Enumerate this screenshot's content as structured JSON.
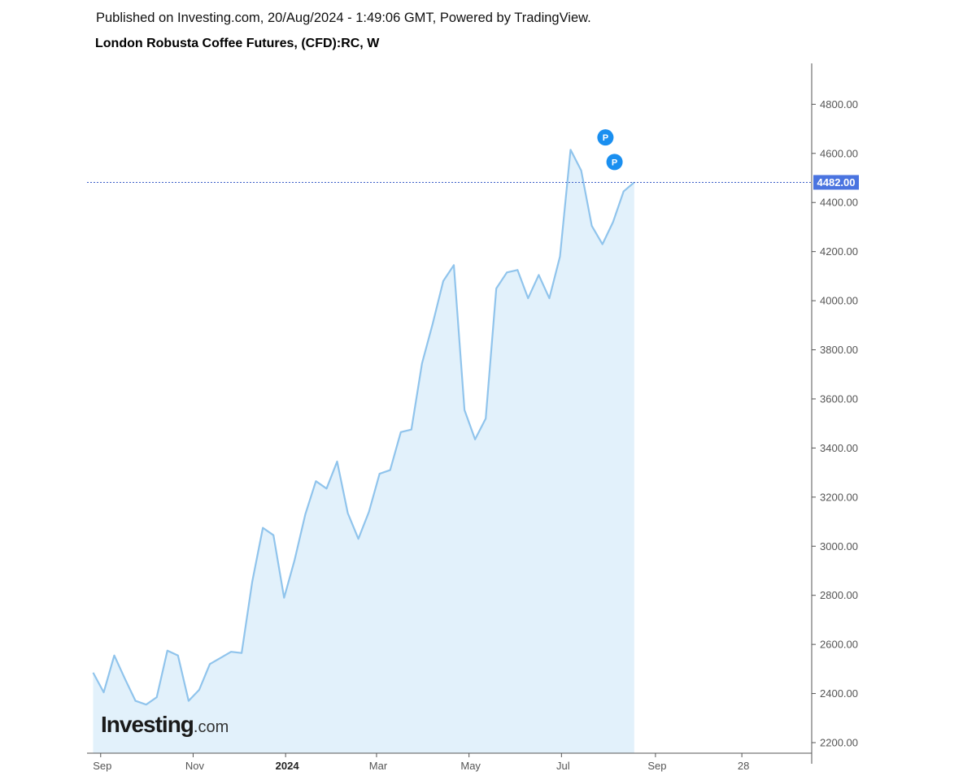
{
  "header": {
    "published": "Published on Investing.com, 20/Aug/2024 - 1:49:06 GMT, Powered by TradingView.",
    "title": "London Robusta Coffee Futures, (CFD):RC, W"
  },
  "logo": {
    "main": "Investing",
    "suffix": ".com"
  },
  "colors": {
    "line": "#90c4ec",
    "fill": "#e2f1fb",
    "price_label_bg": "#4a74e0",
    "marker": "#1a8ff0",
    "axis": "#555555"
  },
  "chart_data": {
    "type": "area",
    "series": [
      {
        "values": [
          2485,
          2405,
          2555,
          2460,
          2370,
          2355,
          2385,
          2575,
          2555,
          2370,
          2415,
          2520,
          2545,
          2570,
          2565,
          2855,
          3075,
          3045,
          2790,
          2945,
          3130,
          3265,
          3235,
          3345,
          3135,
          3030,
          3140,
          3295,
          3310,
          3465,
          3475,
          3745,
          3905,
          4080,
          4145,
          3555,
          3435,
          3520,
          4050,
          4115,
          4125,
          4010,
          4105,
          4010,
          4180,
          4615,
          4530,
          4305,
          4230,
          4320,
          4445,
          4482
        ]
      }
    ],
    "x_start": "2023-08-27",
    "x_interval_days": 7,
    "x_ticks": [
      {
        "date": "2023-09-01",
        "label": "Sep"
      },
      {
        "date": "2023-11-01",
        "label": "Nov"
      },
      {
        "date": "2024-01-01",
        "label": "2024",
        "bold": true
      },
      {
        "date": "2024-03-01",
        "label": "Mar"
      },
      {
        "date": "2024-05-01",
        "label": "May"
      },
      {
        "date": "2024-07-01",
        "label": "Jul"
      },
      {
        "date": "2024-09-01",
        "label": "Sep"
      },
      {
        "date": "2024-10-28",
        "label": "28"
      }
    ],
    "y_ticks": [
      "2200.00",
      "2400.00",
      "2600.00",
      "2800.00",
      "3000.00",
      "3200.00",
      "3400.00",
      "3600.00",
      "3800.00",
      "4000.00",
      "4200.00",
      "4400.00",
      "4600.00",
      "4800.00"
    ],
    "ylim": [
      2160,
      4970
    ],
    "last_price": 4482,
    "last_price_label": "4482.00",
    "markers": [
      {
        "date": "2024-07-30",
        "price": 4665,
        "label": "P"
      },
      {
        "date": "2024-08-05",
        "price": 4565,
        "label": "P"
      }
    ]
  }
}
